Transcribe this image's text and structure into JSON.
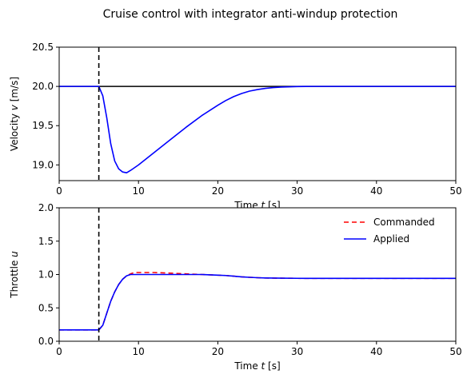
{
  "figure": {
    "title": "Cruise control with integrator anti-windup protection"
  },
  "chart_data": [
    {
      "type": "line",
      "xlabel": "Time t [s]",
      "ylabel": "Velocity v [m/s]",
      "xlim": [
        0,
        50
      ],
      "ylim": [
        18.8,
        20.5
      ],
      "xticks": [
        "0",
        "10",
        "20",
        "30",
        "40",
        "50"
      ],
      "yticks": [
        "19.0",
        "19.5",
        "20.0",
        "20.5"
      ],
      "grid": false,
      "series": [
        {
          "color": "#0000ff",
          "style": "solid",
          "x": [
            0,
            5,
            5.5,
            6,
            6.5,
            7,
            7.5,
            8,
            8.5,
            9,
            10,
            12,
            14,
            16,
            18,
            20,
            21,
            22,
            23,
            24,
            25,
            26,
            27,
            28,
            30,
            32,
            35,
            40,
            50
          ],
          "y": [
            20.0,
            20.0,
            19.88,
            19.6,
            19.27,
            19.05,
            18.95,
            18.91,
            18.9,
            18.93,
            19.0,
            19.16,
            19.32,
            19.48,
            19.63,
            19.76,
            19.82,
            19.87,
            19.91,
            19.94,
            19.96,
            19.975,
            19.985,
            19.992,
            19.998,
            20.0,
            20.0,
            20.0,
            20.0
          ]
        }
      ],
      "hlines": [
        {
          "y": 20.0,
          "color": "#000000",
          "style": "solid"
        }
      ],
      "vlines": [
        {
          "x": 5,
          "color": "#000000",
          "style": "dashed"
        }
      ]
    },
    {
      "type": "line",
      "xlabel": "Time t [s]",
      "ylabel": "Throttle u",
      "xlim": [
        0,
        50
      ],
      "ylim": [
        0,
        2.0
      ],
      "xticks": [
        "0",
        "10",
        "20",
        "30",
        "40",
        "50"
      ],
      "yticks": [
        "0.0",
        "0.5",
        "1.0",
        "1.5",
        "2.0"
      ],
      "grid": false,
      "legend": "top-right",
      "series": [
        {
          "name": "Commanded",
          "color": "#ff0000",
          "style": "dashed",
          "x": [
            0,
            5,
            5.5,
            6,
            6.5,
            7,
            7.5,
            8,
            8.5,
            9,
            9.5,
            10,
            12,
            14,
            16,
            18,
            20,
            21,
            22,
            23,
            24,
            25,
            26,
            28,
            30,
            35,
            40,
            50
          ],
          "y": [
            0.17,
            0.17,
            0.24,
            0.42,
            0.6,
            0.74,
            0.85,
            0.93,
            0.98,
            1.01,
            1.03,
            1.03,
            1.03,
            1.02,
            1.01,
            1.0,
            0.99,
            0.985,
            0.975,
            0.965,
            0.958,
            0.952,
            0.948,
            0.945,
            0.943,
            0.942,
            0.942,
            0.942
          ]
        },
        {
          "name": "Applied",
          "color": "#0000ff",
          "style": "solid",
          "x": [
            0,
            5,
            5.5,
            6,
            6.5,
            7,
            7.5,
            8,
            8.5,
            9,
            9.5,
            10,
            12,
            14,
            16,
            18,
            20,
            21,
            22,
            23,
            24,
            25,
            26,
            28,
            30,
            35,
            40,
            50
          ],
          "y": [
            0.17,
            0.17,
            0.24,
            0.42,
            0.6,
            0.74,
            0.85,
            0.93,
            0.98,
            1.0,
            1.0,
            1.0,
            1.0,
            1.0,
            1.0,
            1.0,
            0.99,
            0.985,
            0.975,
            0.965,
            0.958,
            0.952,
            0.948,
            0.945,
            0.943,
            0.942,
            0.942,
            0.942
          ]
        }
      ],
      "vlines": [
        {
          "x": 5,
          "color": "#000000",
          "style": "dashed"
        }
      ]
    }
  ]
}
